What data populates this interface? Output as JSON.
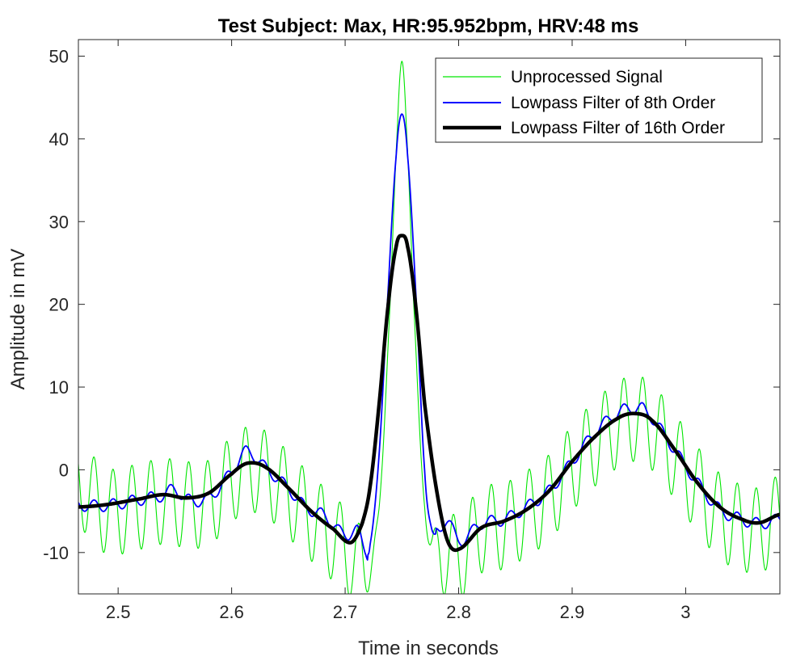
{
  "chart_data": {
    "type": "line",
    "title": "Test Subject: Max, HR:95.952bpm, HRV:48 ms",
    "xlabel": "Time in seconds",
    "ylabel": "Amplitude in mV",
    "xlim": [
      2.465,
      3.083
    ],
    "ylim": [
      -15,
      52
    ],
    "xticks": [
      2.5,
      2.6,
      2.7,
      2.8,
      2.9,
      3
    ],
    "xtick_labels": [
      "2.5",
      "2.6",
      "2.7",
      "2.8",
      "2.9",
      "3"
    ],
    "yticks": [
      -10,
      0,
      10,
      20,
      30,
      40,
      50
    ],
    "ytick_labels": [
      "-10",
      "0",
      "10",
      "20",
      "30",
      "40",
      "50"
    ],
    "grid": false,
    "legend_position": "top-right",
    "series": [
      {
        "name": "Unprocessed Signal",
        "color": "#00e600",
        "style": "thin",
        "ripple": true,
        "points": [
          [
            2.465,
            -1
          ],
          [
            2.49,
            -4.2
          ],
          [
            2.52,
            -3.6
          ],
          [
            2.54,
            -3.0
          ],
          [
            2.56,
            -3.4
          ],
          [
            2.58,
            -3.2
          ],
          [
            2.6,
            -0.4
          ],
          [
            2.614,
            0.8
          ],
          [
            2.63,
            0.3
          ],
          [
            2.65,
            -2.2
          ],
          [
            2.67,
            -5.0
          ],
          [
            2.69,
            -7.5
          ],
          [
            2.705,
            -9.5
          ],
          [
            2.715,
            -11.0
          ],
          [
            2.725,
            -9.0
          ],
          [
            2.732,
            0
          ],
          [
            2.74,
            22
          ],
          [
            2.746,
            42
          ],
          [
            2.75,
            50.2
          ],
          [
            2.754,
            42
          ],
          [
            2.76,
            22
          ],
          [
            2.768,
            0
          ],
          [
            2.775,
            -8.5
          ],
          [
            2.785,
            -9.0
          ],
          [
            2.8,
            -9.7
          ],
          [
            2.82,
            -6.5
          ],
          [
            2.84,
            -6.0
          ],
          [
            2.86,
            -4.5
          ],
          [
            2.88,
            -2.5
          ],
          [
            2.9,
            1.0
          ],
          [
            2.92,
            4.0
          ],
          [
            2.94,
            6.2
          ],
          [
            2.955,
            7.0
          ],
          [
            2.97,
            6.0
          ],
          [
            2.99,
            2.5
          ],
          [
            3.01,
            -1.5
          ],
          [
            3.03,
            -4.8
          ],
          [
            3.05,
            -6.2
          ],
          [
            3.065,
            -6.5
          ],
          [
            3.083,
            -5.0
          ]
        ]
      },
      {
        "name": "Lowpass Filter of 8th Order",
        "color": "#0000ff",
        "style": "medium",
        "ripple": false,
        "points": [
          [
            2.465,
            -4.3
          ],
          [
            2.49,
            -4.3
          ],
          [
            2.52,
            -3.6
          ],
          [
            2.54,
            -3.1
          ],
          [
            2.55,
            -2.3
          ],
          [
            2.56,
            -3.6
          ],
          [
            2.58,
            -3.4
          ],
          [
            2.6,
            -0.3
          ],
          [
            2.613,
            2.2
          ],
          [
            2.63,
            0.2
          ],
          [
            2.65,
            -2.2
          ],
          [
            2.665,
            -4.5
          ],
          [
            2.68,
            -5.4
          ],
          [
            2.69,
            -6.6
          ],
          [
            2.7,
            -8.0
          ],
          [
            2.71,
            -7.2
          ],
          [
            2.718,
            -9.8
          ],
          [
            2.722,
            -9.0
          ],
          [
            2.73,
            2
          ],
          [
            2.738,
            22
          ],
          [
            2.745,
            38
          ],
          [
            2.75,
            43.0
          ],
          [
            2.755,
            38
          ],
          [
            2.762,
            22
          ],
          [
            2.77,
            0
          ],
          [
            2.776,
            -7.0
          ],
          [
            2.782,
            -7.5
          ],
          [
            2.79,
            -6.0
          ],
          [
            2.8,
            -8.6
          ],
          [
            2.82,
            -6.5
          ],
          [
            2.84,
            -6.0
          ],
          [
            2.86,
            -4.5
          ],
          [
            2.88,
            -2.5
          ],
          [
            2.9,
            1.0
          ],
          [
            2.92,
            4.5
          ],
          [
            2.94,
            6.8
          ],
          [
            2.952,
            7.4
          ],
          [
            2.965,
            7.0
          ],
          [
            2.99,
            2.5
          ],
          [
            3.01,
            -1.5
          ],
          [
            3.03,
            -4.8
          ],
          [
            3.05,
            -6.0
          ],
          [
            3.065,
            -6.5
          ],
          [
            3.083,
            -6.0
          ]
        ]
      },
      {
        "name": "Lowpass Filter of 16th Order",
        "color": "#000000",
        "style": "thick",
        "ripple": false,
        "points": [
          [
            2.465,
            -4.5
          ],
          [
            2.49,
            -4.2
          ],
          [
            2.52,
            -3.5
          ],
          [
            2.54,
            -3.0
          ],
          [
            2.56,
            -3.4
          ],
          [
            2.58,
            -2.8
          ],
          [
            2.6,
            -0.5
          ],
          [
            2.614,
            0.8
          ],
          [
            2.63,
            0.3
          ],
          [
            2.65,
            -2.2
          ],
          [
            2.67,
            -5.0
          ],
          [
            2.69,
            -7.2
          ],
          [
            2.705,
            -8.8
          ],
          [
            2.715,
            -6.5
          ],
          [
            2.722,
            -2
          ],
          [
            2.73,
            8
          ],
          [
            2.738,
            20
          ],
          [
            2.745,
            27
          ],
          [
            2.75,
            28.3
          ],
          [
            2.755,
            27
          ],
          [
            2.762,
            20
          ],
          [
            2.77,
            8
          ],
          [
            2.78,
            -2
          ],
          [
            2.79,
            -8.5
          ],
          [
            2.8,
            -9.6
          ],
          [
            2.82,
            -7.0
          ],
          [
            2.84,
            -6.2
          ],
          [
            2.86,
            -4.8
          ],
          [
            2.88,
            -2.5
          ],
          [
            2.9,
            1.0
          ],
          [
            2.92,
            4.0
          ],
          [
            2.94,
            6.2
          ],
          [
            2.955,
            6.8
          ],
          [
            2.97,
            6.0
          ],
          [
            2.99,
            2.5
          ],
          [
            3.01,
            -1.5
          ],
          [
            3.03,
            -4.5
          ],
          [
            3.05,
            -6.0
          ],
          [
            3.065,
            -6.4
          ],
          [
            3.083,
            -5.4
          ]
        ]
      }
    ]
  },
  "icons": {
    "legend_sample": "line-sample-icon"
  }
}
